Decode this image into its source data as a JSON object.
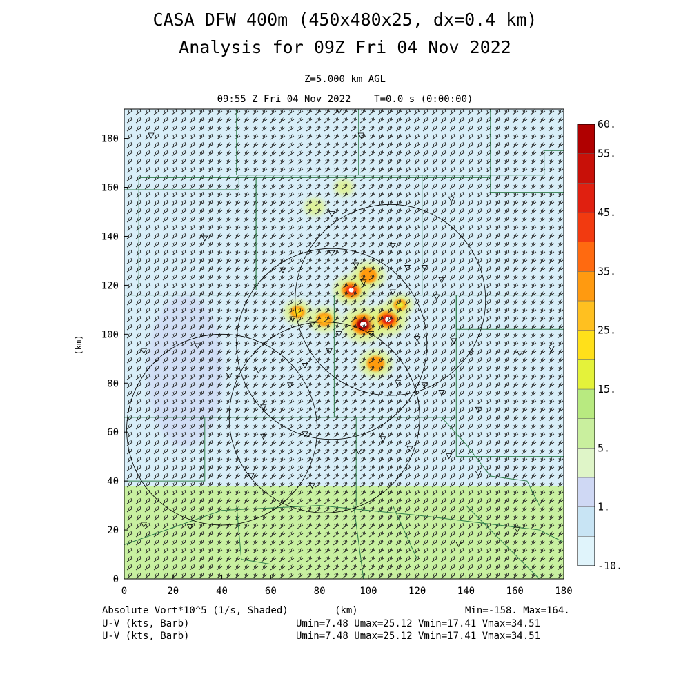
{
  "header": {
    "title_line1": "CASA DFW 400m (450x480x25, dx=0.4 km)",
    "title_line2": "Analysis for 09Z Fri 04 Nov 2022",
    "level": "Z=5.000 km AGL",
    "time_line": "09:55 Z Fri 04 Nov 2022    T=0.0 s (0:00:00)"
  },
  "footer": {
    "field_label": "Absolute Vort*10^5 (1/s, Shaded)",
    "xunit": "(km)",
    "minmax": "Min=-158. Max=164.",
    "vector1_label": "U-V (kts, Barb)",
    "vector1_stats": "Umin=7.48 Umax=25.12 Vmin=17.41 Vmax=34.51",
    "vector2_label": "U-V (kts, Barb)",
    "vector2_stats": "Umin=7.48 Umax=25.12 Vmin=17.41 Vmax=34.51"
  },
  "colors": {
    "plot_background": "#d8eef8",
    "southern_band": "#c8f0a0",
    "barb": "#222222",
    "boundary": "#2e7d4a",
    "radar_circle": "#000000"
  },
  "colorbar": {
    "levels": [
      "#e0f4fb",
      "#c8e4f4",
      "#cfd8f4",
      "#dff5c8",
      "#c9ef9e",
      "#b8ea80",
      "#e4f23a",
      "#ffe01a",
      "#ffc020",
      "#ff9a10",
      "#ff6a10",
      "#f23a10",
      "#e02010",
      "#c81008",
      "#b00000"
    ],
    "labels": [
      "-10.",
      "1.",
      "5.",
      "15.",
      "25.",
      "35.",
      "45.",
      "55.",
      "60."
    ]
  },
  "chart_data": {
    "type": "heatmap",
    "title": "CASA DFW 400m (450x480x25, dx=0.4 km)",
    "subtitle": "Analysis for 09Z Fri 04 Nov 2022",
    "xlabel": "(km)",
    "ylabel": "(km)",
    "xlim": [
      0,
      180
    ],
    "ylim": [
      0,
      192
    ],
    "xticks": [
      "0",
      "20",
      "40",
      "60",
      "80",
      "100",
      "120",
      "140",
      "160",
      "180"
    ],
    "yticks": [
      "0",
      "20",
      "40",
      "60",
      "80",
      "100",
      "120",
      "140",
      "160",
      "180"
    ],
    "field": "Absolute Vort*10^5 (1/s)",
    "min": -158,
    "max": 164,
    "southern_band_km": [
      0,
      38
    ],
    "vorticity_maxima": [
      {
        "x": 98,
        "y": 104,
        "value": 60
      },
      {
        "x": 93,
        "y": 118,
        "value": 45
      },
      {
        "x": 108,
        "y": 106,
        "value": 50
      },
      {
        "x": 100,
        "y": 124,
        "value": 40
      },
      {
        "x": 103,
        "y": 88,
        "value": 40
      },
      {
        "x": 82,
        "y": 106,
        "value": 35
      },
      {
        "x": 71,
        "y": 109,
        "value": 30
      },
      {
        "x": 113,
        "y": 112,
        "value": 25
      },
      {
        "x": 78,
        "y": 152,
        "value": 15
      },
      {
        "x": 90,
        "y": 160,
        "value": 12
      }
    ],
    "radar_rings": [
      {
        "cx": 109,
        "cy": 114,
        "r": 39
      },
      {
        "cx": 85,
        "cy": 96,
        "r": 39
      },
      {
        "cx": 82,
        "cy": 66,
        "r": 39
      },
      {
        "cx": 40,
        "cy": 61,
        "r": 39
      }
    ],
    "wind": {
      "units": "kts",
      "u_range": [
        7.48,
        25.12
      ],
      "v_range": [
        17.41,
        34.51
      ]
    }
  }
}
